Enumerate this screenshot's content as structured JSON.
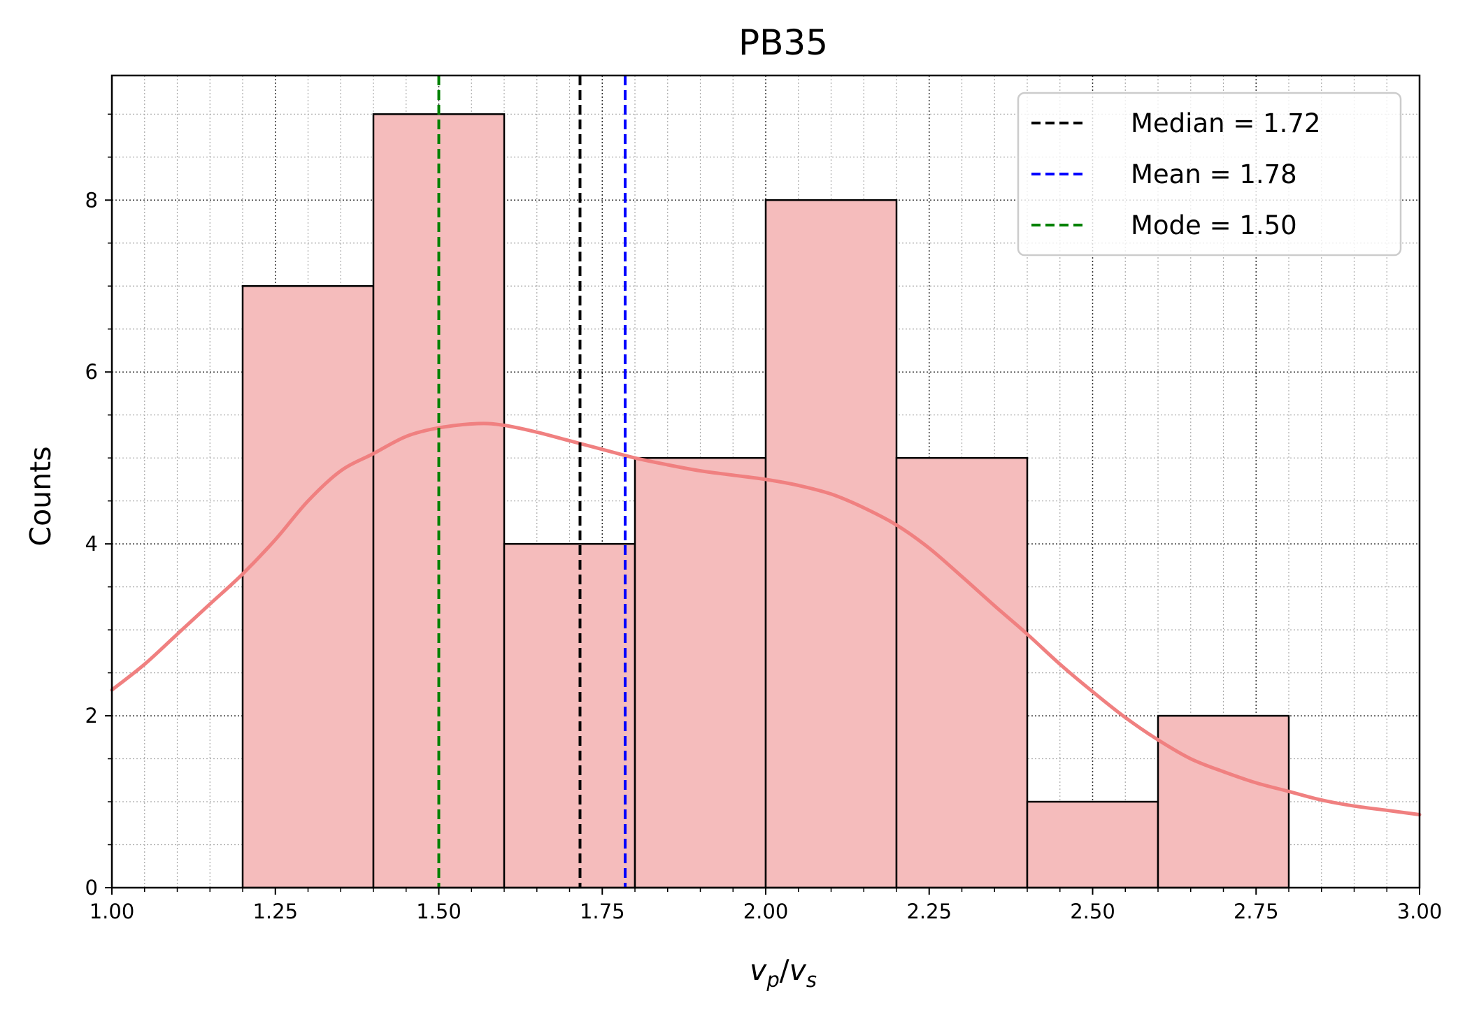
{
  "chart_data": {
    "type": "bar",
    "title": "PB35",
    "xlabel_var": "v",
    "xlabel_sub1": "p",
    "xlabel_sep": "/",
    "xlabel_sub2": "s",
    "ylabel": "Counts",
    "xlim": [
      1.0,
      3.0
    ],
    "ylim": [
      0,
      9.45
    ],
    "xticks": [
      "1.00",
      "1.25",
      "1.50",
      "1.75",
      "2.00",
      "2.25",
      "2.50",
      "2.75",
      "3.00"
    ],
    "yticks": [
      "0",
      "2",
      "4",
      "6",
      "8"
    ],
    "grid": true,
    "legend_position": "top-right",
    "bin_edges": [
      1.2,
      1.4,
      1.6,
      1.8,
      2.0,
      2.2,
      2.4,
      2.6,
      2.8
    ],
    "counts": [
      7,
      9,
      4,
      5,
      8,
      5,
      1,
      2
    ],
    "kde": {
      "x": [
        1.0,
        1.05,
        1.1,
        1.15,
        1.2,
        1.25,
        1.3,
        1.35,
        1.4,
        1.45,
        1.5,
        1.56,
        1.6,
        1.65,
        1.7,
        1.75,
        1.8,
        1.85,
        1.9,
        1.95,
        2.0,
        2.05,
        2.1,
        2.15,
        2.2,
        2.25,
        2.3,
        2.35,
        2.4,
        2.45,
        2.5,
        2.55,
        2.6,
        2.65,
        2.7,
        2.75,
        2.8,
        2.85,
        2.9,
        2.95,
        3.0
      ],
      "y": [
        2.3,
        2.6,
        2.95,
        3.3,
        3.65,
        4.05,
        4.5,
        4.85,
        5.05,
        5.25,
        5.35,
        5.4,
        5.38,
        5.3,
        5.2,
        5.1,
        5.0,
        4.92,
        4.85,
        4.8,
        4.75,
        4.68,
        4.58,
        4.42,
        4.22,
        3.95,
        3.62,
        3.28,
        2.95,
        2.6,
        2.28,
        1.98,
        1.72,
        1.5,
        1.35,
        1.22,
        1.12,
        1.02,
        0.95,
        0.9,
        0.85
      ],
      "color": "#f08080"
    },
    "bar_fill": "#f5bcbc",
    "bar_edge": "#000000",
    "vlines": [
      {
        "label": "Median = 1.72",
        "x": 1.716,
        "color": "#000000"
      },
      {
        "label": "Mean = 1.78",
        "x": 1.785,
        "color": "#0000ff"
      },
      {
        "label": "Mode = 1.50",
        "x": 1.5,
        "color": "#008000"
      }
    ]
  }
}
